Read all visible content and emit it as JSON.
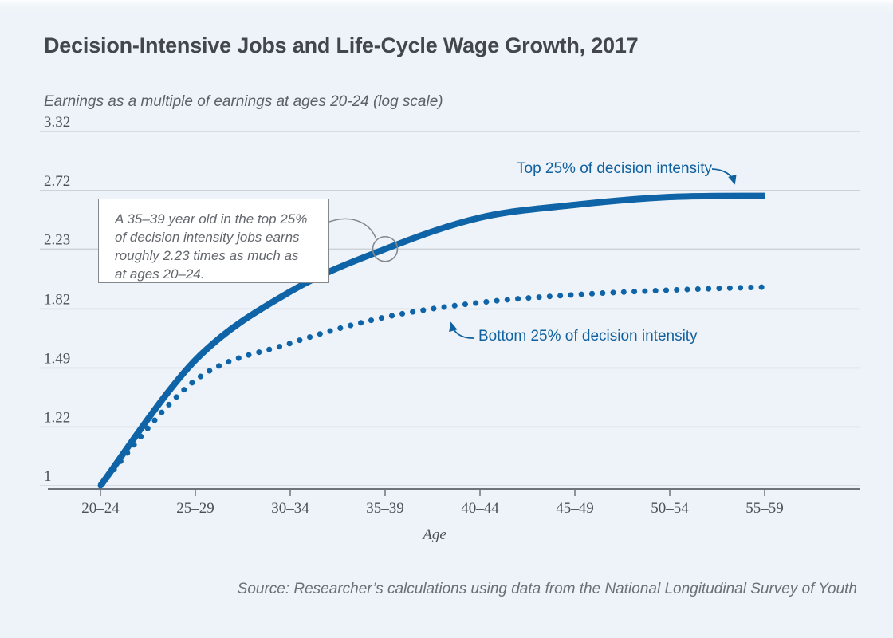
{
  "title": "Decision-Intensive Jobs and Life-Cycle Wage Growth, 2017",
  "subtitle": "Earnings as a multiple of earnings at ages 20-24 (log scale)",
  "source": "Source: Researcher’s calculations using data from the National Longitudinal Survey of Youth",
  "colors": {
    "background": "#edf3f8",
    "line_blue": "#0f63a7",
    "label_blue": "#11619f",
    "grid": "#c9ced3",
    "axis": "#6e747a",
    "title_text": "#43474c",
    "muted_text": "#5c6167",
    "annotation_border": "#84898f"
  },
  "chart_data": {
    "type": "line",
    "categories": [
      "20–24",
      "25–29",
      "30–34",
      "35–39",
      "40–44",
      "45–49",
      "50–54",
      "55–59"
    ],
    "xlabel": "Age",
    "ylabel": "Earnings as a multiple of earnings at ages 20-24 (log scale)",
    "yscale": "log",
    "yticks": [
      "3.32",
      "2.72",
      "2.23",
      "1.82",
      "1.49",
      "1.22",
      "1"
    ],
    "ylim": [
      1,
      3.32
    ],
    "grid": true,
    "legend_position": "inline-annotations",
    "series": [
      {
        "name": "Top 25% of decision intensity",
        "style": "solid",
        "values": [
          1,
          1.53,
          1.93,
          2.23,
          2.48,
          2.59,
          2.66,
          2.67
        ]
      },
      {
        "name": "Bottom 25% of decision intensity",
        "style": "dotted",
        "values": [
          1,
          1.43,
          1.62,
          1.77,
          1.86,
          1.91,
          1.94,
          1.96
        ]
      }
    ],
    "annotation": {
      "lines": [
        "A 35–39 year old in the top 25%",
        "of decision intensity jobs earns",
        "roughly 2.23 times as much as",
        "at ages 20–24."
      ],
      "target": {
        "category_index": 3,
        "value": 2.23
      }
    }
  }
}
